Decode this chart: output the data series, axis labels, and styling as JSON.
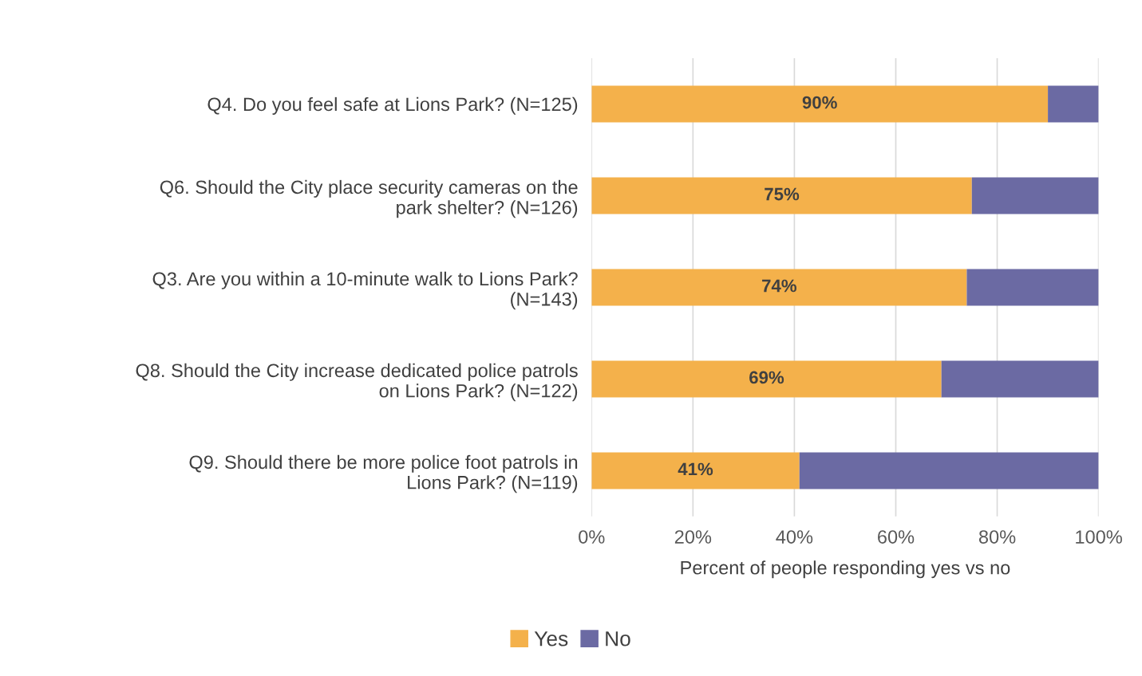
{
  "chart_data": {
    "type": "bar",
    "orientation": "horizontal",
    "stacked": true,
    "categories": [
      "Q4. Do you feel safe at Lions Park? (N=125)",
      "Q6. Should the City place security cameras on the\npark shelter? (N=126)",
      "Q3. Are you within a 10-minute walk to Lions Park?\n(N=143)",
      "Q8. Should the City increase dedicated police patrols\non Lions Park? (N=122)",
      "Q9. Should there be more police foot patrols in\nLions Park? (N=119)"
    ],
    "series": [
      {
        "name": "Yes",
        "color": "#f4b14b",
        "values": [
          90,
          75,
          74,
          69,
          41
        ],
        "value_labels": [
          "90%",
          "75%",
          "74%",
          "69%",
          "41%"
        ]
      },
      {
        "name": "No",
        "color": "#6b6aa3",
        "values": [
          10,
          25,
          26,
          31,
          59
        ]
      }
    ],
    "xlabel": "Percent of people responding yes vs no",
    "xlim": [
      0,
      100
    ],
    "xticks": [
      {
        "value": 0,
        "label": "0%"
      },
      {
        "value": 20,
        "label": "20%"
      },
      {
        "value": 40,
        "label": "40%"
      },
      {
        "value": 60,
        "label": "60%"
      },
      {
        "value": 80,
        "label": "80%"
      },
      {
        "value": 100,
        "label": "100%"
      }
    ],
    "grid": "x",
    "legend": "bottom"
  }
}
